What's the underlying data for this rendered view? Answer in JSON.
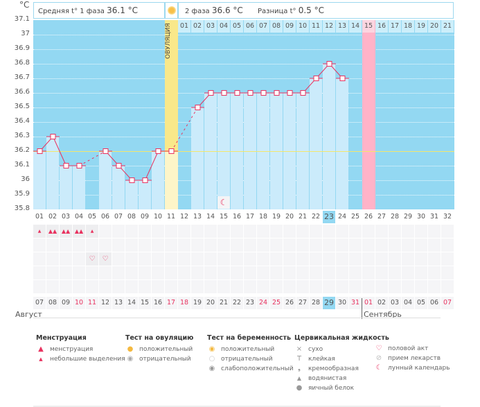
{
  "header": {
    "unit": "°C",
    "phase1": "Средняя t° 1 фаза",
    "phase1_value": "36.1 °C",
    "phase2": "2 фаза",
    "phase2_value": "36.6 °C",
    "diff": "Разница t°",
    "diff_value": "0.5 °C",
    "ovulation_label": "ОВУЛЯЦИЯ"
  },
  "chart_data": {
    "type": "line",
    "ylabel": "°C",
    "ylim": [
      35.8,
      37.1
    ],
    "yticks": [
      "37.1",
      "37",
      "36.9",
      "36.8",
      "36.7",
      "36.6",
      "36.5",
      "36.4",
      "36.3",
      "36.2",
      "36.1",
      "36",
      "35.9",
      "35.8"
    ],
    "coverline": 36.2,
    "cycle_days": [
      "01",
      "02",
      "03",
      "04",
      "05",
      "06",
      "07",
      "08",
      "09",
      "10",
      "11",
      "12",
      "13",
      "14",
      "15",
      "16",
      "17",
      "18",
      "19",
      "20",
      "21",
      "22",
      "23",
      "24",
      "25",
      "26",
      "27",
      "28",
      "29",
      "30",
      "31",
      "32"
    ],
    "phase2_days": [
      "01",
      "02",
      "03",
      "04",
      "05",
      "06",
      "07",
      "08",
      "09",
      "10",
      "11",
      "12",
      "13",
      "14",
      "15",
      "16",
      "17",
      "18",
      "19",
      "20",
      "21"
    ],
    "temperatures": [
      36.2,
      36.3,
      36.1,
      36.1,
      null,
      36.2,
      36.1,
      36.0,
      36.0,
      36.2,
      36.2,
      null,
      36.5,
      36.6,
      36.6,
      36.6,
      36.6,
      36.6,
      36.6,
      36.6,
      36.6,
      36.7,
      36.8,
      36.7,
      null,
      null,
      null,
      null,
      null,
      null,
      null,
      null
    ],
    "ovulation_day": 11,
    "expected_period_day": 26,
    "current_day": 23,
    "moon_day": 15
  },
  "calendar": {
    "dates": [
      "07",
      "08",
      "09",
      "10",
      "11",
      "12",
      "13",
      "14",
      "15",
      "16",
      "17",
      "18",
      "19",
      "20",
      "21",
      "22",
      "23",
      "24",
      "25",
      "26",
      "27",
      "28",
      "29",
      "30",
      "31",
      "01",
      "02",
      "03",
      "04",
      "05",
      "06",
      "07"
    ],
    "weekend_indices": [
      3,
      4,
      10,
      11,
      17,
      18,
      24,
      25,
      31
    ],
    "month1": "Август",
    "month2": "Сентябрь",
    "menstruation": {
      "1": "small",
      "2": "big",
      "3": "big",
      "4": "big",
      "5": "small"
    },
    "intercourse_days": [
      5,
      6
    ]
  },
  "legend": {
    "menstruation": {
      "title": "Менструация",
      "items": [
        "менструация",
        "небольшие выделения"
      ]
    },
    "ovulation_test": {
      "title": "Тест на овуляцию",
      "items": [
        "положительный",
        "отрицательный"
      ]
    },
    "pregnancy_test": {
      "title": "Тест на беременность",
      "items": [
        "положительный",
        "отрицательный",
        "слабоположительный"
      ]
    },
    "cervical": {
      "title": "Цервикальная жидкость",
      "items": [
        "сухо",
        "клейкая",
        "кремообразная",
        "водянистая",
        "яичный белок"
      ]
    },
    "other": {
      "items": [
        "половой акт",
        "прием лекарств",
        "лунный календарь"
      ]
    }
  },
  "colors": {
    "bg": "#93d8f2",
    "bar": "#cbebfb",
    "line": "#e8325f",
    "ovulation": "#f9e88a",
    "period": "#ffb3c8",
    "coverline": "#f5e66a"
  }
}
